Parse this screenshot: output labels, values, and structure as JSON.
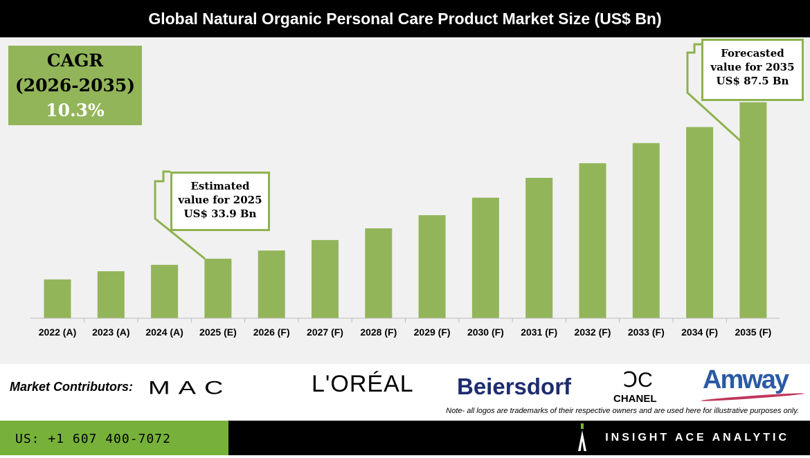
{
  "title": "Global Natural Organic Personal Care Product Market Size (US$ Bn)",
  "cagr": {
    "label": "CAGR",
    "period": "(2026-2035)",
    "value": "10.3%"
  },
  "callouts": {
    "estimated": {
      "line1": "Estimated",
      "line2": "value for 2025",
      "line3": "US$ 33.9 Bn"
    },
    "forecasted": {
      "line1": "Forecasted",
      "line2": "value for 2035",
      "line3": "US$ 87.5 Bn"
    }
  },
  "colors": {
    "bar": "#93b55a",
    "accent": "#77b13a"
  },
  "chart_data": {
    "type": "bar",
    "title": "Global Natural Organic Personal Care Product Market Size (US$ Bn)",
    "categories": [
      "2022 (A)",
      "2023 (A)",
      "2024 (A)",
      "2025 (E)",
      "2026 (F)",
      "2027 (F)",
      "2028 (F)",
      "2029 (F)",
      "2030 (F)",
      "2031 (F)",
      "2032 (F)",
      "2033 (F)",
      "2034 (F)",
      "2035 (F)"
    ],
    "values": [
      26.8,
      29.6,
      31.8,
      33.9,
      36.7,
      40.3,
      44.3,
      48.8,
      54.8,
      61.6,
      66.6,
      73.5,
      79.0,
      87.5
    ],
    "ylim": [
      13.5,
      100
    ],
    "grid": false,
    "xlabel": "",
    "ylabel": ""
  },
  "contributors": {
    "label": "Market Contributors:",
    "logos": [
      "MAC",
      "L'ORÉAL",
      "Beiersdorf",
      "CHANEL",
      "Amway"
    ],
    "note": "Note- all logos are trademarks of their respective owners and are used here for illustrative purposes only."
  },
  "footer": {
    "phone": "US: +1 607 400-7072",
    "brand": "INSIGHT ACE ANALYTIC"
  }
}
